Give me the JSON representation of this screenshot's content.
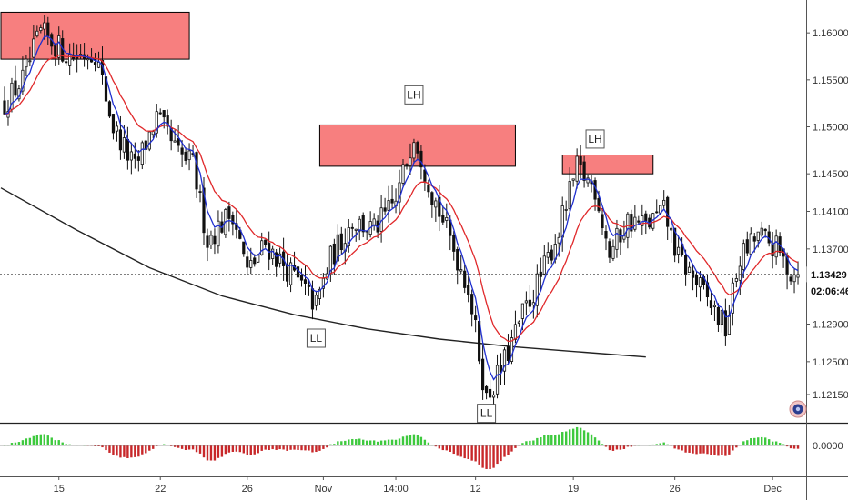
{
  "chart_data": {
    "type": "candlestick",
    "price_axis": {
      "ticks": [
        "1.16000",
        "1.15500",
        "1.15000",
        "1.14500",
        "1.14100",
        "1.13700",
        "1.12900",
        "1.12500",
        "1.12150"
      ],
      "tick_values": [
        1.16,
        1.155,
        1.15,
        1.145,
        1.141,
        1.137,
        1.129,
        1.125,
        1.1215
      ],
      "range": [
        1.1185,
        1.1635
      ]
    },
    "time_axis": {
      "labels": [
        "15",
        "22",
        "26",
        "Nov",
        "14:00",
        "12",
        "19",
        "26",
        "Dec"
      ],
      "bar_index": [
        15,
        43,
        67,
        88,
        108,
        130,
        157,
        185,
        212
      ],
      "bar_count": 220
    },
    "current_price": "1.13429",
    "countdown": "02:06:46",
    "current_price_value": 1.13429,
    "oscillator": {
      "zero_label": "0.0000",
      "range": [
        -1,
        1
      ]
    },
    "annotations": [
      {
        "text": "LH",
        "kind": "swing-label",
        "bar": 113,
        "price": 1.1534
      },
      {
        "text": "LH",
        "kind": "swing-label",
        "bar": 163,
        "price": 1.1487
      },
      {
        "text": "LL",
        "kind": "swing-label",
        "bar": 86,
        "price": 1.1275
      },
      {
        "text": "LL",
        "kind": "swing-label",
        "bar": 133,
        "price": 1.1195
      }
    ],
    "zones": [
      {
        "kind": "resistance",
        "bar_start": -1,
        "bar_end": 51,
        "price_top": 1.1622,
        "price_bottom": 1.1572,
        "color": "#f77f7f"
      },
      {
        "kind": "resistance",
        "bar_start": 87,
        "bar_end": 141,
        "price_top": 1.1502,
        "price_bottom": 1.1458,
        "color": "#f77f7f"
      },
      {
        "kind": "resistance",
        "bar_start": 154,
        "bar_end": 179,
        "price_top": 1.147,
        "price_bottom": 1.145,
        "color": "#f77f7f"
      }
    ],
    "trendline_curve": [
      [
        -1,
        1.1435
      ],
      [
        20,
        1.139
      ],
      [
        40,
        1.135
      ],
      [
        60,
        1.132
      ],
      [
        80,
        1.13
      ],
      [
        100,
        1.1285
      ],
      [
        120,
        1.1274
      ],
      [
        140,
        1.1266
      ],
      [
        160,
        1.126
      ],
      [
        177,
        1.1255
      ]
    ],
    "colors": {
      "up_candle": "#ffffff",
      "down_candle": "#111111",
      "ma_fast": "#1f2fcf",
      "ma_slow": "#e0282a",
      "hist_up": "#3ec93e",
      "hist_down": "#c8282a",
      "zone": "#f77f7f",
      "zone_border": "#000000"
    },
    "path_anchors": [
      [
        0,
        1.1525
      ],
      [
        5,
        1.155
      ],
      [
        10,
        1.16
      ],
      [
        18,
        1.1575
      ],
      [
        25,
        1.158
      ],
      [
        30,
        1.15
      ],
      [
        36,
        1.1455
      ],
      [
        42,
        1.151
      ],
      [
        48,
        1.147
      ],
      [
        52,
        1.146
      ],
      [
        56,
        1.138
      ],
      [
        63,
        1.141
      ],
      [
        67,
        1.1345
      ],
      [
        72,
        1.1375
      ],
      [
        80,
        1.134
      ],
      [
        86,
        1.131
      ],
      [
        90,
        1.136
      ],
      [
        96,
        1.14
      ],
      [
        102,
        1.139
      ],
      [
        108,
        1.142
      ],
      [
        113,
        1.1495
      ],
      [
        118,
        1.143
      ],
      [
        123,
        1.138
      ],
      [
        128,
        1.133
      ],
      [
        133,
        1.121
      ],
      [
        138,
        1.125
      ],
      [
        143,
        1.13
      ],
      [
        148,
        1.134
      ],
      [
        153,
        1.139
      ],
      [
        158,
        1.1455
      ],
      [
        163,
        1.1435
      ],
      [
        167,
        1.1365
      ],
      [
        172,
        1.14
      ],
      [
        177,
        1.1395
      ],
      [
        182,
        1.141
      ],
      [
        186,
        1.136
      ],
      [
        190,
        1.134
      ],
      [
        195,
        1.131
      ],
      [
        199,
        1.1285
      ],
      [
        203,
        1.136
      ],
      [
        208,
        1.1385
      ],
      [
        213,
        1.137
      ],
      [
        217,
        1.1345
      ],
      [
        219,
        1.1343
      ]
    ]
  }
}
